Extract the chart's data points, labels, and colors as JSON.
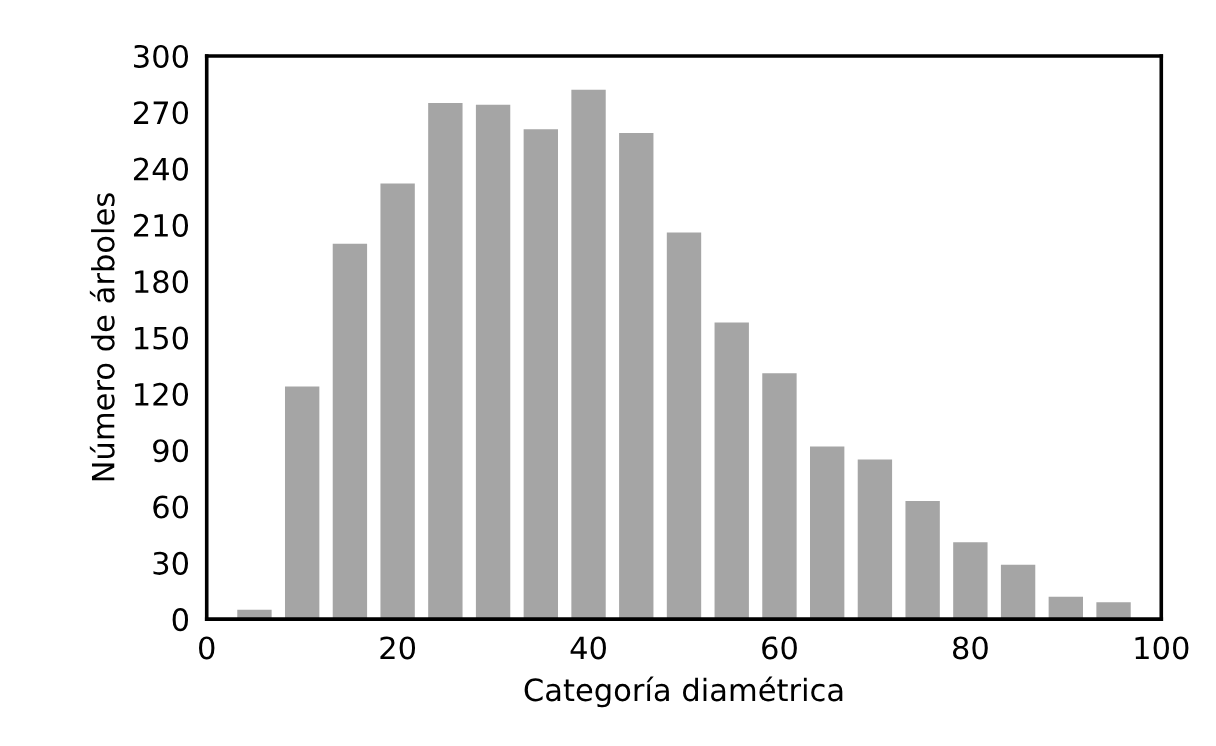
{
  "chart_data": {
    "type": "bar",
    "xlabel": "Categoría diamétrica",
    "ylabel": "Número de árboles",
    "x": [
      5,
      10,
      15,
      20,
      25,
      30,
      35,
      40,
      45,
      50,
      55,
      60,
      65,
      70,
      75,
      80,
      85,
      90,
      95
    ],
    "values": [
      5,
      124,
      200,
      232,
      275,
      274,
      261,
      282,
      259,
      206,
      158,
      131,
      92,
      85,
      63,
      41,
      29,
      12,
      9
    ],
    "color": "#a5a5a5",
    "xlim": [
      0,
      100
    ],
    "xticks": [
      0,
      20,
      40,
      60,
      80,
      100
    ],
    "ylim": [
      0,
      300
    ],
    "yticks": [
      0,
      30,
      60,
      90,
      120,
      150,
      180,
      210,
      240,
      270,
      300
    ],
    "grid": false,
    "legend": false
  }
}
